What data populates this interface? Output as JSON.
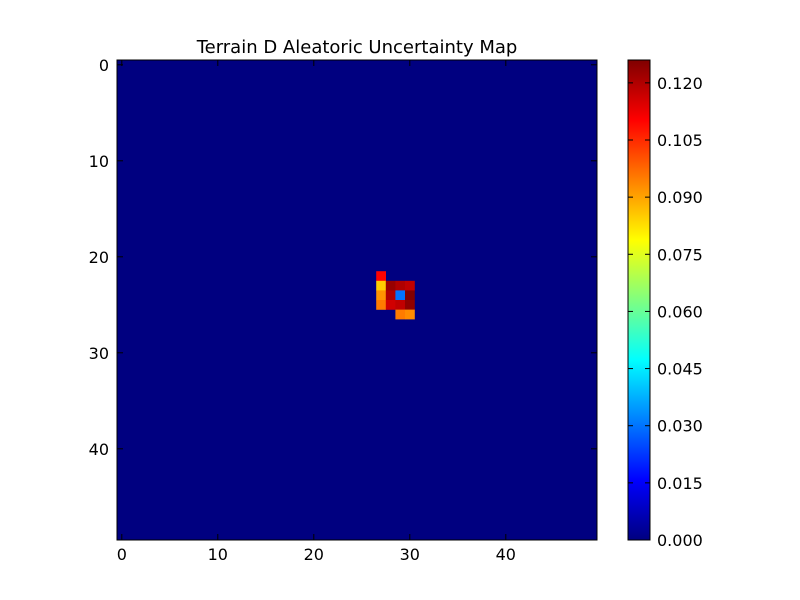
{
  "chart_data": {
    "type": "heatmap",
    "title": "Terrain D Aleatoric Uncertainty Map",
    "xlabel": "",
    "ylabel": "",
    "grid_size": [
      50,
      50
    ],
    "xlim": [
      -0.5,
      49.5
    ],
    "ylim": [
      49.5,
      -0.5
    ],
    "x_ticks": [
      0,
      10,
      20,
      30,
      40
    ],
    "y_ticks": [
      0,
      10,
      20,
      30,
      40
    ],
    "colormap": "jet",
    "vmin": 0.0,
    "vmax": 0.126,
    "colorbar_ticks": [
      "0.000",
      "0.015",
      "0.030",
      "0.045",
      "0.060",
      "0.075",
      "0.090",
      "0.105",
      "0.120"
    ],
    "colorbar_tick_values": [
      0.0,
      0.015,
      0.03,
      0.045,
      0.06,
      0.075,
      0.09,
      0.105,
      0.12
    ],
    "background_value": 0.0,
    "hotspot_cells": [
      {
        "row": 22,
        "col": 27,
        "value": 0.11
      },
      {
        "row": 23,
        "col": 27,
        "value": 0.085
      },
      {
        "row": 23,
        "col": 28,
        "value": 0.123
      },
      {
        "row": 23,
        "col": 29,
        "value": 0.12
      },
      {
        "row": 23,
        "col": 30,
        "value": 0.118
      },
      {
        "row": 24,
        "col": 27,
        "value": 0.092
      },
      {
        "row": 24,
        "col": 28,
        "value": 0.12
      },
      {
        "row": 24,
        "col": 29,
        "value": 0.03
      },
      {
        "row": 24,
        "col": 30,
        "value": 0.126
      },
      {
        "row": 25,
        "col": 27,
        "value": 0.095
      },
      {
        "row": 25,
        "col": 28,
        "value": 0.116
      },
      {
        "row": 25,
        "col": 29,
        "value": 0.118
      },
      {
        "row": 25,
        "col": 30,
        "value": 0.124
      },
      {
        "row": 26,
        "col": 29,
        "value": 0.095
      },
      {
        "row": 26,
        "col": 30,
        "value": 0.093
      }
    ]
  }
}
